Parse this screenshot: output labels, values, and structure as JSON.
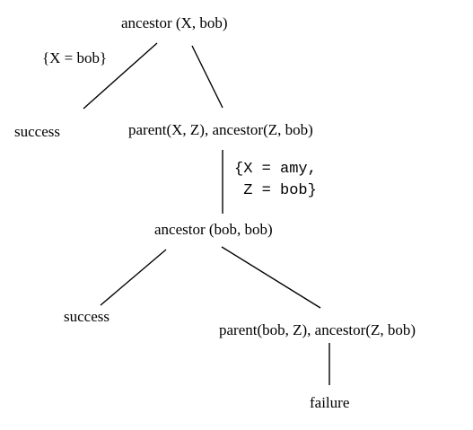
{
  "nodes": {
    "root": "ancestor (X, bob)",
    "success_1": "success",
    "goal_2": "parent(X, Z), ancestor(Z, bob)",
    "goal_3": "ancestor (bob, bob)",
    "success_2": "success",
    "goal_4": "parent(bob, Z), ancestor(Z, bob)",
    "failure": "failure"
  },
  "edge_labels": {
    "root_to_success": "{X = bob}",
    "goal2_to_goal3_line1": "{X = amy,",
    "goal2_to_goal3_line2": " Z = bob}"
  }
}
